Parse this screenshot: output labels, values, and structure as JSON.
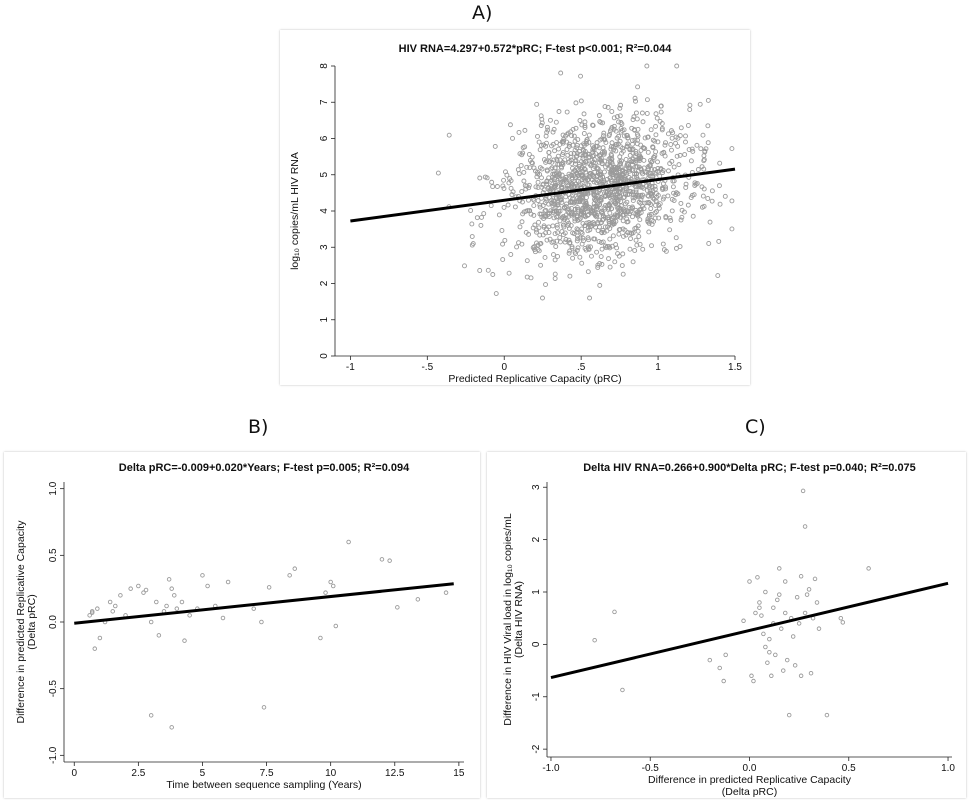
{
  "chart_data": [
    {
      "panel": "A)",
      "type": "scatter",
      "title": "HIV RNA=4.297+0.572*pRC; F-test p<0.001; R²=0.044",
      "xlabel": "Predicted Replicative Capacity (pRC)",
      "ylabel": "log₁₀ copies/mL HIV RNA",
      "xlim": [
        -1.1,
        1.5
      ],
      "ylim": [
        0,
        8
      ],
      "xticks": [
        -1,
        -0.5,
        0,
        0.5,
        1,
        1.5
      ],
      "xtick_labels": [
        "-1",
        "-.5",
        "0",
        ".5",
        "1",
        "1.5"
      ],
      "yticks": [
        0,
        1,
        2,
        3,
        4,
        5,
        6,
        7,
        8
      ],
      "ytick_labels": [
        "0",
        "1",
        "2",
        "3",
        "4",
        "5",
        "6",
        "7",
        "8"
      ],
      "fit": {
        "intercept": 4.297,
        "slope": 0.572,
        "x_range": [
          -1.0,
          1.5
        ]
      },
      "points": {
        "count": 1500,
        "x_center": 0.62,
        "x_spread": 0.3,
        "y_center": 4.6,
        "y_spread": 0.95,
        "seed": 7
      },
      "marker_color": "#9a9a9a",
      "grid": false
    },
    {
      "panel": "B)",
      "type": "scatter",
      "title": "Delta pRC=-0.009+0.020*Years; F-test p=0.005; R²=0.094",
      "xlabel": "Time between sequence sampling (Years)",
      "ylabel": "Difference in predicted Replicative Capacity",
      "ylabel2": "(Delta pRC)",
      "xlim": [
        -0.4,
        15.2
      ],
      "ylim": [
        -1.05,
        1.05
      ],
      "xticks": [
        0,
        2.5,
        5,
        7.5,
        10,
        12.5,
        15
      ],
      "xtick_labels": [
        "0",
        "2.5",
        "5",
        "7.5",
        "10",
        "12.5",
        "15"
      ],
      "yticks": [
        -1,
        -0.5,
        0,
        0.5,
        1
      ],
      "ytick_labels": [
        "-1.0",
        "-0.5",
        "0.0",
        "0.5",
        "1.0"
      ],
      "fit": {
        "intercept": -0.009,
        "slope": 0.02,
        "x_range": [
          0,
          14.8
        ]
      },
      "points": {
        "x": [
          0.6,
          0.7,
          0.8,
          0.9,
          1.0,
          1.2,
          1.4,
          1.5,
          1.6,
          1.8,
          2.0,
          2.2,
          2.5,
          2.7,
          2.8,
          3.0,
          3.2,
          3.3,
          3.5,
          3.6,
          3.7,
          3.8,
          3.9,
          4.0,
          4.2,
          4.3,
          4.5,
          4.8,
          5.0,
          5.2,
          5.5,
          5.8,
          6.0,
          7.0,
          7.3,
          7.6,
          8.4,
          8.6,
          9.8,
          10.0,
          10.1,
          10.2,
          10.7,
          12.0,
          12.3,
          12.6,
          13.4,
          14.5,
          0.7,
          3.0,
          3.8,
          7.4,
          9.6
        ],
        "y": [
          0.05,
          0.08,
          -0.2,
          0.1,
          -0.12,
          0.0,
          0.15,
          0.08,
          0.12,
          0.2,
          0.05,
          0.25,
          0.27,
          0.22,
          0.24,
          0.0,
          0.15,
          -0.1,
          0.08,
          0.12,
          0.32,
          0.25,
          0.2,
          0.1,
          0.15,
          -0.14,
          0.05,
          0.1,
          0.35,
          0.27,
          0.12,
          0.03,
          0.3,
          0.1,
          0.0,
          0.26,
          0.35,
          0.4,
          0.22,
          0.3,
          0.27,
          -0.03,
          0.6,
          0.47,
          0.46,
          0.11,
          0.17,
          0.22,
          0.07,
          -0.7,
          -0.79,
          -0.64,
          -0.12
        ]
      },
      "marker_color": "#9a9a9a",
      "grid": false
    },
    {
      "panel": "C)",
      "type": "scatter",
      "title": "Delta HIV RNA=0.266+0.900*Delta pRC; F-test p=0.040; R²=0.075",
      "xlabel": "Difference in predicted Replicative Capacity",
      "xlabel2": "(Delta pRC)",
      "ylabel": "Difference in HIV Viral load in log₁₀ copies/mL",
      "ylabel2": "(Delta HIV RNA)",
      "xlim": [
        -1.02,
        1.02
      ],
      "ylim": [
        -2.15,
        3.1
      ],
      "xticks": [
        -1,
        -0.5,
        0,
        0.5,
        1
      ],
      "xtick_labels": [
        "-1.0",
        "-0.5",
        "0.0",
        "0.5",
        "1.0"
      ],
      "yticks": [
        -2,
        -1,
        0,
        1,
        2,
        3
      ],
      "ytick_labels": [
        "-2",
        "-1",
        "0",
        "1",
        "2",
        "3"
      ],
      "fit": {
        "intercept": 0.266,
        "slope": 0.9,
        "x_range": [
          -1.0,
          1.0
        ]
      },
      "points": {
        "x": [
          -0.78,
          -0.68,
          -0.64,
          -0.2,
          -0.15,
          -0.13,
          -0.12,
          -0.03,
          0.0,
          0.01,
          0.02,
          0.03,
          0.04,
          0.05,
          0.06,
          0.07,
          0.08,
          0.09,
          0.1,
          0.11,
          0.12,
          0.13,
          0.14,
          0.15,
          0.16,
          0.17,
          0.18,
          0.19,
          0.2,
          0.21,
          0.22,
          0.23,
          0.24,
          0.25,
          0.26,
          0.27,
          0.28,
          0.29,
          0.3,
          0.31,
          0.32,
          0.33,
          0.34,
          0.35,
          0.39,
          0.46,
          0.47,
          0.6,
          0.26,
          0.28,
          0.08,
          0.12,
          0.18,
          0.15,
          0.05,
          0.1
        ],
        "y": [
          0.08,
          0.62,
          -0.87,
          -0.3,
          -0.45,
          -0.7,
          -0.2,
          0.45,
          1.2,
          -0.6,
          -0.7,
          0.6,
          1.28,
          0.8,
          0.55,
          0.2,
          1.0,
          -0.35,
          0.1,
          -0.6,
          0.7,
          -0.2,
          0.85,
          1.45,
          0.3,
          -0.5,
          0.6,
          -0.3,
          -1.35,
          0.5,
          0.15,
          -0.4,
          0.9,
          0.4,
          1.3,
          2.93,
          2.25,
          0.95,
          1.05,
          -0.55,
          0.5,
          1.25,
          0.8,
          0.3,
          -1.35,
          0.5,
          0.42,
          1.45,
          -0.6,
          0.6,
          -0.05,
          0.4,
          1.2,
          0.95,
          0.7,
          -0.15
        ],
        "count_note": ""
      },
      "marker_color": "#9a9a9a",
      "grid": false
    }
  ]
}
